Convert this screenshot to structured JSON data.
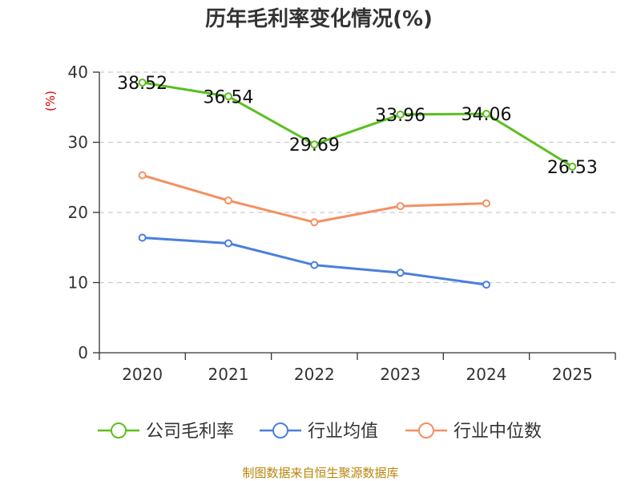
{
  "chart_data": {
    "type": "line",
    "title": "历年毛利率变化情况(%)",
    "ylabel": "(%)",
    "xlabel": "",
    "categories": [
      "2020",
      "2021",
      "2022",
      "2023",
      "2024",
      "2025"
    ],
    "ylim": [
      0,
      40
    ],
    "yticks": [
      "0",
      "10",
      "20",
      "30",
      "40"
    ],
    "grid": true,
    "legend_position": "bottom",
    "series": [
      {
        "name": "公司毛利率",
        "color": "#5cbf1f",
        "values": [
          38.52,
          36.54,
          29.69,
          33.96,
          34.06,
          26.53
        ],
        "labels": [
          "38.52",
          "36.54",
          "29.69",
          "33.96",
          "34.06",
          "26.53"
        ]
      },
      {
        "name": "行业均值",
        "color": "#4a7fdc",
        "values": [
          16.4,
          15.6,
          12.5,
          11.4,
          9.7,
          null
        ]
      },
      {
        "name": "行业中位数",
        "color": "#f49062",
        "values": [
          25.3,
          21.7,
          18.6,
          20.9,
          21.3,
          null
        ]
      }
    ]
  },
  "source": "制图数据来自恒生聚源数据库"
}
